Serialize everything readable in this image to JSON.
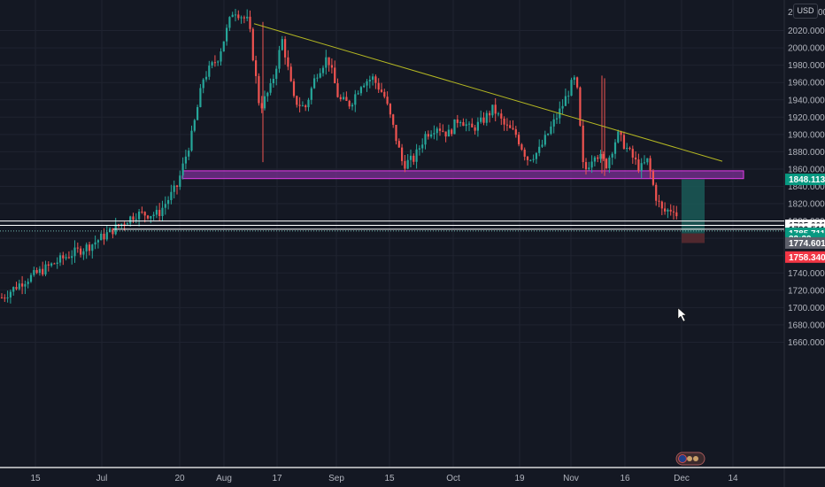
{
  "currency_badge": "USD",
  "chart_data": {
    "type": "candlestick",
    "title": "",
    "y_axis": {
      "ticks": [
        "2020.000",
        "2000.000",
        "1980.000",
        "1960.000",
        "1940.000",
        "1920.000",
        "1900.000",
        "1880.000",
        "1860.000",
        "1840.000",
        "1820.000",
        "1800.000",
        "1780.000",
        "1760.000",
        "1740.000",
        "1720.000",
        "1700.000",
        "1680.000",
        "1660.000"
      ],
      "range": [
        1648,
        2040
      ]
    },
    "x_axis": {
      "ticks": [
        "15",
        "Jul",
        "20",
        "Aug",
        "17",
        "Sep",
        "15",
        "Oct",
        "19",
        "Nov",
        "16",
        "Dec",
        "14"
      ]
    },
    "price_path": [
      [
        0,
        1710
      ],
      [
        0.03,
        1730
      ],
      [
        0.06,
        1745
      ],
      [
        0.09,
        1760
      ],
      [
        0.12,
        1772
      ],
      [
        0.15,
        1790
      ],
      [
        0.18,
        1808
      ],
      [
        0.21,
        1808
      ],
      [
        0.235,
        1840
      ],
      [
        0.255,
        1900
      ],
      [
        0.27,
        1965
      ],
      [
        0.29,
        1990
      ],
      [
        0.31,
        2045
      ],
      [
        0.33,
        2030
      ],
      [
        0.345,
        1930
      ],
      [
        0.36,
        1955
      ],
      [
        0.375,
        2010
      ],
      [
        0.39,
        1940
      ],
      [
        0.405,
        1930
      ],
      [
        0.42,
        1970
      ],
      [
        0.435,
        1990
      ],
      [
        0.45,
        1940
      ],
      [
        0.465,
        1935
      ],
      [
        0.48,
        1960
      ],
      [
        0.495,
        1965
      ],
      [
        0.51,
        1945
      ],
      [
        0.52,
        1915
      ],
      [
        0.535,
        1865
      ],
      [
        0.55,
        1872
      ],
      [
        0.565,
        1900
      ],
      [
        0.58,
        1910
      ],
      [
        0.595,
        1900
      ],
      [
        0.61,
        1920
      ],
      [
        0.625,
        1905
      ],
      [
        0.64,
        1915
      ],
      [
        0.655,
        1930
      ],
      [
        0.67,
        1910
      ],
      [
        0.685,
        1900
      ],
      [
        0.7,
        1872
      ],
      [
        0.715,
        1880
      ],
      [
        0.73,
        1905
      ],
      [
        0.745,
        1930
      ],
      [
        0.76,
        1960
      ],
      [
        0.765,
        1965
      ],
      [
        0.775,
        1855
      ],
      [
        0.79,
        1880
      ],
      [
        0.805,
        1865
      ],
      [
        0.82,
        1900
      ],
      [
        0.835,
        1880
      ],
      [
        0.85,
        1860
      ],
      [
        0.86,
        1870
      ],
      [
        0.87,
        1830
      ],
      [
        0.88,
        1810
      ],
      [
        0.895,
        1815
      ],
      [
        0.905,
        1790
      ]
    ],
    "series": [
      {
        "type": "ohlc",
        "trend": "candles rendered from price_path"
      }
    ],
    "annotations": {
      "trendline": {
        "from_price": 2028,
        "to_price": 1869,
        "color": "#b5b822"
      },
      "support_zone": {
        "top": 1858,
        "bottom": 1849,
        "fill": "#7a2f94",
        "border": "#e33ce8"
      },
      "long_position": {
        "target": 1848.113,
        "entry": 1785.711,
        "stop": 1774.601
      },
      "horizontal_lines": [
        1795.001,
        1790.511,
        1800.0
      ]
    },
    "price_tags": [
      {
        "label": "1848.113",
        "price": 1848.113,
        "bg": "#089981",
        "color": "#ffffff"
      },
      {
        "label": "1795.001",
        "price": 1795.001,
        "bg": "#ffffff",
        "color": "#131722"
      },
      {
        "label": "1790.511",
        "price": 1790.511,
        "bg": "#ffffff",
        "color": "#131722"
      },
      {
        "label": "1785.711",
        "price": 1785.711,
        "bg": "#089981",
        "color": "#ffffff"
      },
      {
        "label": "33:39",
        "price": 1779.5,
        "bg": "#089981",
        "color": "#ffffff"
      },
      {
        "label": "1774.601",
        "price": 1774.601,
        "bg": "#5d606b",
        "color": "#ffffff"
      },
      {
        "label": "1758.340",
        "price": 1758.34,
        "bg": "#f23645",
        "color": "#ffffff"
      }
    ],
    "partial_labels": [
      "20",
      "00",
      "1774"
    ],
    "grid": true,
    "colors": {
      "up": "#26a69a",
      "down": "#ef5350",
      "background": "#141823",
      "grid": "#1f2330"
    }
  }
}
